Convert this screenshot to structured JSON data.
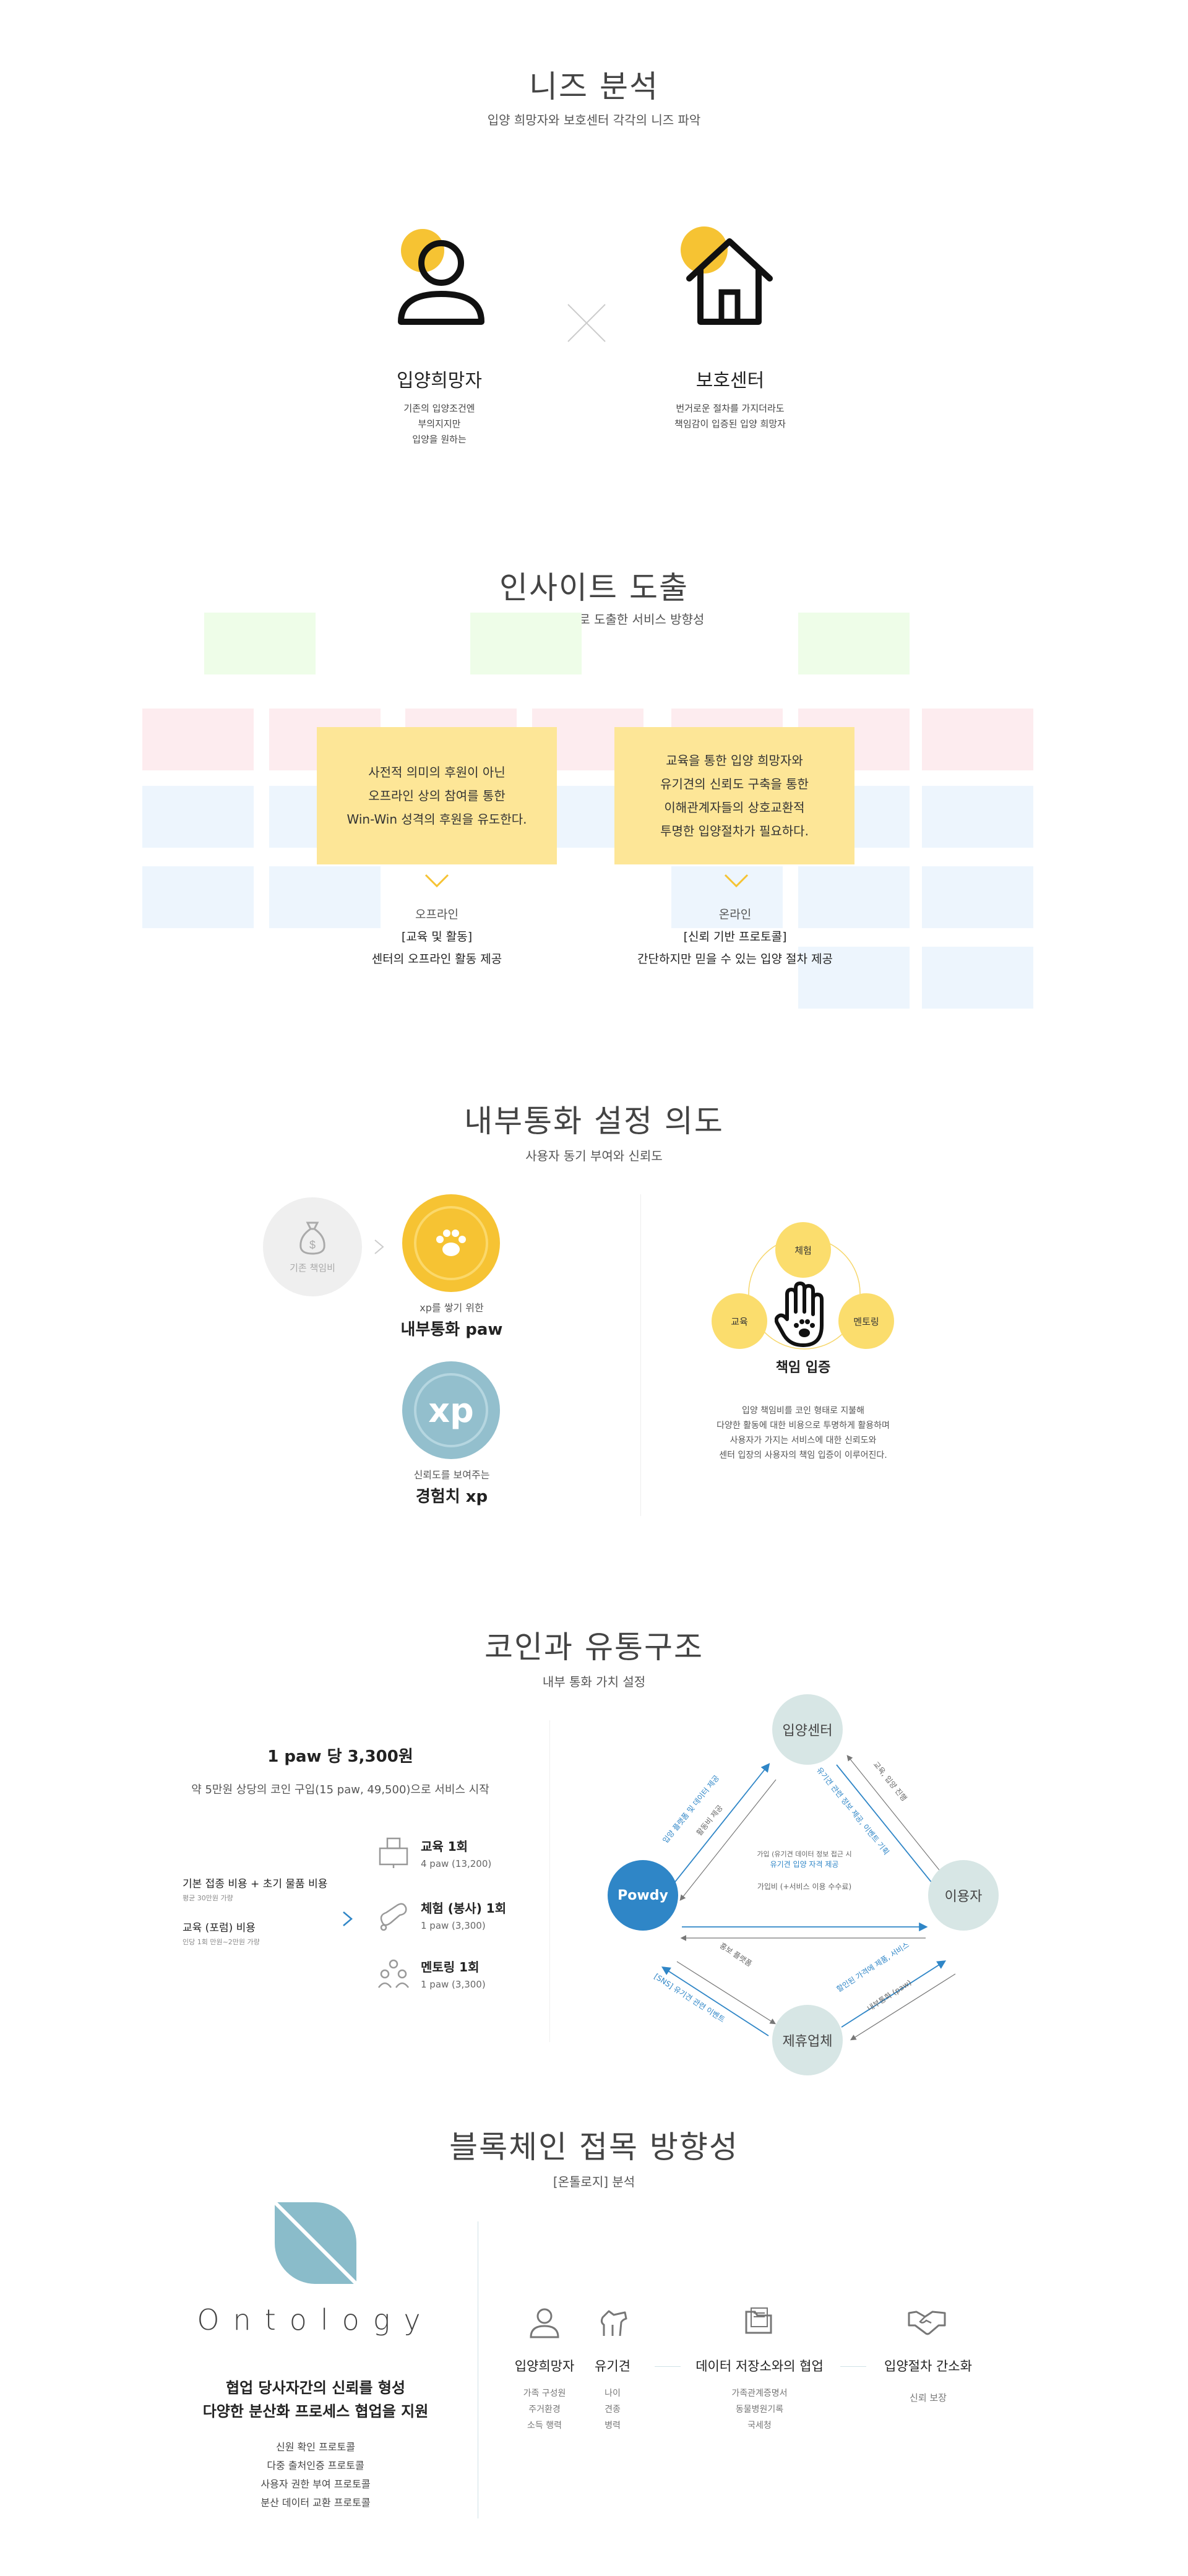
{
  "needs": {
    "title": "니즈 분석",
    "subtitle": "입양 희망자와 보호센터 각각의 니즈 파악",
    "adopter": {
      "label": "입양희망자",
      "desc": [
        "기존의 입양조건엔",
        "부의지지만",
        "입양을 원하는"
      ],
      "icon": "person-icon"
    },
    "center": {
      "label": "보호센터",
      "desc": [
        "번거로운 절차를 가지더라도",
        "책임감이 입증된 입양 희망자"
      ],
      "icon": "house-icon"
    }
  },
  "insight": {
    "title": "인사이트 도출",
    "subtitle": "어피니티와 인터뷰로 도출한 서비스 방향성",
    "left_box": [
      "사전적 의미의 후원이 아닌",
      "오프라인 상의 참여를 통한",
      "Win-Win 성격의 후원을 유도한다."
    ],
    "right_box": [
      "교육을 통한 입양 희망자와",
      "유기견의 신뢰도 구축을 통한",
      "이해관계자들의 상호교환적",
      "투명한 입양절차가 필요하다."
    ],
    "offline": {
      "label": "오프라인",
      "tag": "[교육 및 활동]",
      "desc": "센터의 오프라인 활동 제공"
    },
    "online": {
      "label": "온라인",
      "tag": "[신뢰 기반 프로토콜]",
      "desc": "간단하지만 믿을 수 있는 입양 절차 제공"
    }
  },
  "currency": {
    "title": "내부통화 설정 의도",
    "subtitle": "사용자 동기 부여와 신뢰도",
    "old_label": "기존 책임비",
    "paw_small": "xp를 쌓기 위한",
    "paw_big": "내부통화 paw",
    "xp_badge": "xp",
    "xp_small": "신뢰도를 보여주는",
    "xp_big": "경험치 xp",
    "cycle": {
      "top": "체험",
      "left": "교육",
      "right": "멘토링",
      "center_label": "책임 입증"
    },
    "desc": [
      "입양 책임비를 코인 형태로 지불해",
      "다양한 활동에 대한 비용으로 투명하게 활용하며",
      "사용자가 가지는 서비스에 대한 신뢰도와",
      "센터 입장의 사용자의 책임 입증이 이루어진다."
    ]
  },
  "coin": {
    "title": "코인과 유통구조",
    "subtitle": "내부 통화 가치 설정",
    "price": "1 paw 당 3,300원",
    "start": "약 5만원 상당의 코인 구입(15 paw, 49,500)으로 서비스 시작",
    "cost1": "기본 접종 비용 + 초기 물품 비용",
    "cost1_sub": "평균 30만원 가량",
    "cost2": "교육 (포럼) 비용",
    "cost2_sub": "인당 1회 만원~2만원 가량",
    "items": [
      {
        "name": "교육 1회",
        "price": "4 paw (13,200)"
      },
      {
        "name": "체험 (봉사) 1회",
        "price": "1 paw (3,300)"
      },
      {
        "name": "멘토링 1회",
        "price": "1 paw (3,300)"
      }
    ],
    "nodes": {
      "top": "입양센터",
      "left": "Powdy",
      "right": "이용자",
      "bottom": "제휴업체"
    },
    "arrows": {
      "tl_blue": "입양 플랫폼 및 데이터 제공",
      "tl_gray": "활동비 제공",
      "tr_blue": "유기견 관련 정보 제공, 이벤트 기획",
      "tr_gray": "교육, 입양 진행",
      "mid_top": "가입 (유기견 데이터 정보 접근 시",
      "mid_blue": "유기견 입양 자격 제공",
      "mid_gray": "가입비 (+서비스 이용 수수료)",
      "bl_gray": "홍보 플랫폼",
      "bl_blue": "[SNS] 유기견 관련 이벤트",
      "br_blue": "할인된 가격에 제품, 서비스",
      "br_gray": "내부통화 (paw)"
    }
  },
  "blockchain": {
    "title": "블록체인 접목 방향성",
    "subtitle": "[온톨로지] 분석",
    "logo_text": "Ontology",
    "headline": [
      "협업 당사자간의 신뢰를 형성",
      "다양한 분산화 프로세스 협업을 지원"
    ],
    "protocols": [
      "신원 확인 프로토콜",
      "다중 출처인증 프로토콜",
      "사용자 권한 부여 프로토콜",
      "분산 데이터 교환 프로토콜"
    ],
    "cols": [
      {
        "title": "입양희망자",
        "items": [
          "가족 구성원",
          "주거환경",
          "소득 행력"
        ],
        "icon": "person-outline-icon"
      },
      {
        "title": "유기견",
        "items": [
          "나이",
          "견종",
          "병력"
        ],
        "icon": "dog-icon"
      },
      {
        "title": "데이터 저장소와의 협업",
        "items": [
          "가족관계증명서",
          "동물병원기록",
          "국세청"
        ],
        "icon": "folder-icon"
      },
      {
        "title": "입양절차 간소화",
        "items": [
          "신뢰 보장"
        ],
        "icon": "handshake-icon"
      }
    ]
  }
}
